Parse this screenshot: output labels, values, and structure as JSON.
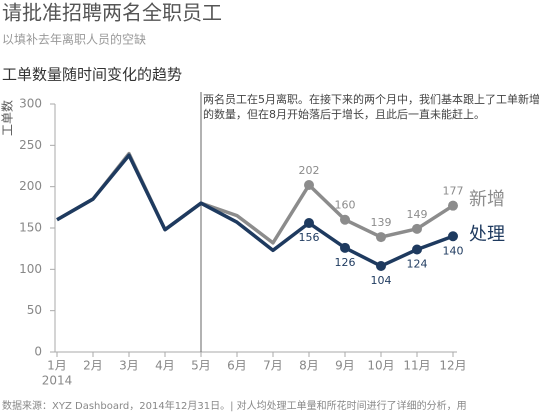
{
  "title": "请批准招聘两名全职员工",
  "subtitle": "以填补去年离职人员的空缺",
  "footnote": "数据来源：XYZ Dashboard，2014年12月31日。| 对人均处理工单量和所花时间进行了详细的分析，用",
  "chart_data": {
    "type": "line",
    "title": "工单数量随时间变化的趋势",
    "y_label": "工单数",
    "annotation": "两名员工在5月离职。在接下来的两个月中，我们基本跟上了工单新增的数量，但在8月开始落后于增长，且此后一直未能赶上。",
    "year_label": "2014",
    "categories": [
      "1月",
      "2月",
      "3月",
      "4月",
      "5月",
      "6月",
      "7月",
      "8月",
      "9月",
      "10月",
      "11月",
      "12月"
    ],
    "series": [
      {
        "name": "新增",
        "color": "#8c8c8c",
        "values": [
          160,
          185,
          240,
          148,
          180,
          165,
          132,
          202,
          160,
          139,
          149,
          177
        ]
      },
      {
        "name": "处理",
        "color": "#1e3a5f",
        "values": [
          160,
          185,
          238,
          148,
          180,
          157,
          123,
          156,
          126,
          104,
          124,
          140
        ]
      }
    ],
    "ylim": [
      0,
      300
    ],
    "yticks": [
      0,
      50,
      100,
      150,
      200,
      250,
      300
    ]
  }
}
